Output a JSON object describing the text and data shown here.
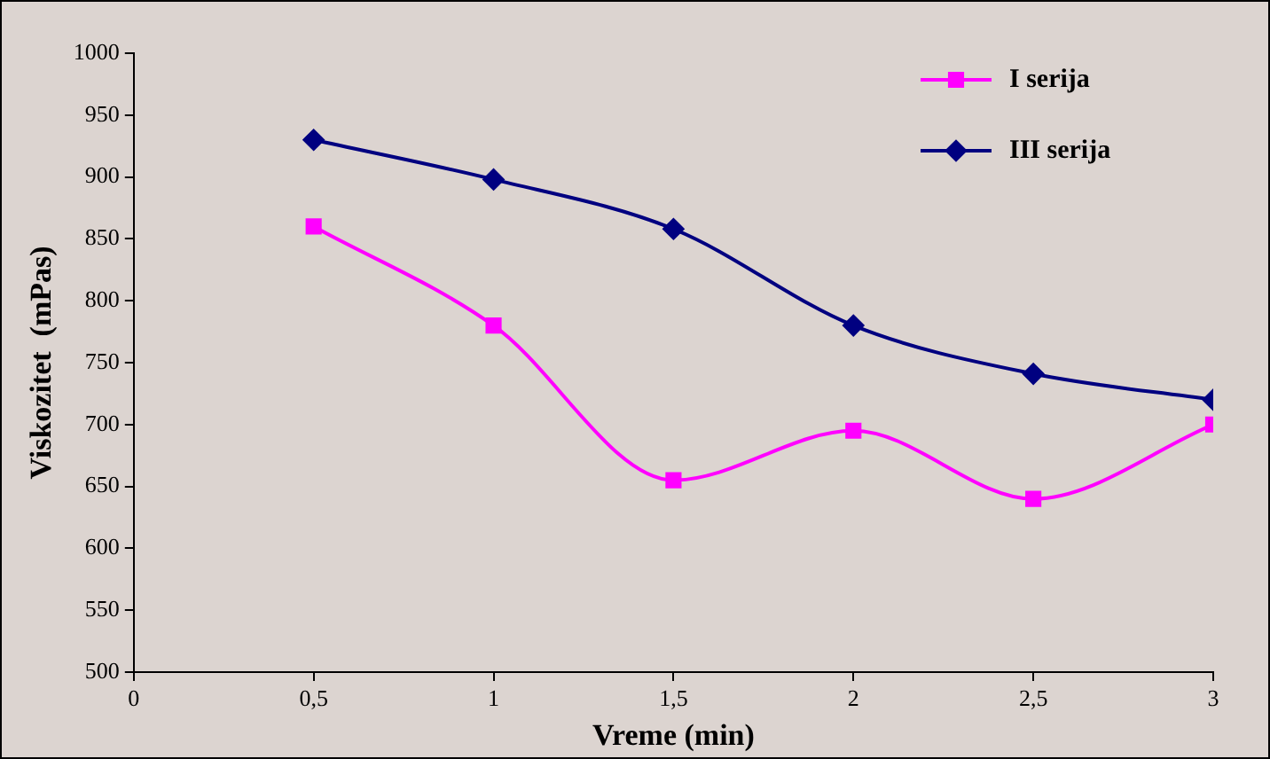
{
  "chart_data": {
    "type": "line",
    "xlabel": "Vreme (min)",
    "ylabel": "Viskozitet  (mPas)",
    "x": [
      0.5,
      1,
      1.5,
      2,
      2.5,
      3
    ],
    "series": [
      {
        "name": "I serija",
        "color": "#ff00ff",
        "marker": "square",
        "values": [
          860,
          780,
          655,
          695,
          640,
          700
        ]
      },
      {
        "name": "III serija",
        "color": "#000080",
        "marker": "diamond",
        "values": [
          930,
          898,
          858,
          780,
          741,
          720
        ]
      }
    ],
    "xlim": [
      0,
      3
    ],
    "xticks": [
      0,
      {
        "value": 0.5,
        "label": "0,5"
      },
      1,
      {
        "value": 1.5,
        "label": "1,5"
      },
      2,
      {
        "value": 2.5,
        "label": "2,5"
      },
      3
    ],
    "ylim": [
      500,
      1000
    ],
    "yticks": [
      500,
      550,
      600,
      650,
      700,
      750,
      800,
      850,
      900,
      950,
      1000
    ],
    "grid": false,
    "legend": "top right"
  }
}
